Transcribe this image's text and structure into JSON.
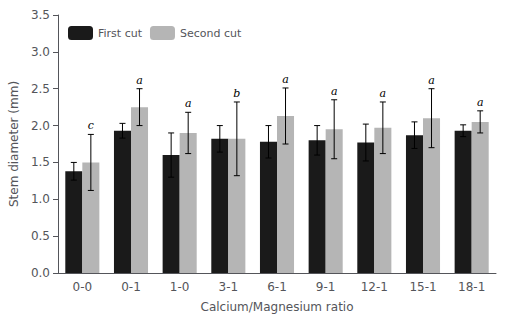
{
  "chart_data": {
    "type": "bar",
    "xlabel": "Calcium/Magnesium ratio",
    "ylabel": "Stem diameter (mm)",
    "categories": [
      "0-0",
      "0-1",
      "1-0",
      "3-1",
      "6-1",
      "9-1",
      "12-1",
      "15-1",
      "18-1"
    ],
    "series": [
      {
        "name": "First cut",
        "color": "#1a1a1a",
        "values": [
          1.38,
          1.93,
          1.6,
          1.82,
          1.78,
          1.8,
          1.77,
          1.87,
          1.93
        ],
        "errors": [
          0.12,
          0.1,
          0.3,
          0.18,
          0.22,
          0.2,
          0.25,
          0.18,
          0.08
        ]
      },
      {
        "name": "Second cut",
        "color": "#b5b5b5",
        "values": [
          1.5,
          2.25,
          1.9,
          1.82,
          2.13,
          1.95,
          1.97,
          2.1,
          2.05
        ],
        "errors": [
          0.38,
          0.25,
          0.28,
          0.5,
          0.38,
          0.4,
          0.35,
          0.4,
          0.15
        ],
        "annotations": [
          "c",
          "a",
          "a",
          "b",
          "a",
          "a",
          "a",
          "a",
          "a"
        ]
      }
    ],
    "ylim": [
      0.0,
      3.5
    ],
    "yticks": [
      {
        "value": 0.0,
        "label": "0.0"
      },
      0.5,
      {
        "value": 1.0,
        "label": "1.0"
      },
      1.5,
      {
        "value": 2.0,
        "label": "2.0"
      },
      2.5,
      {
        "value": 3.0,
        "label": "3.0"
      },
      3.5
    ],
    "legend": "upper left",
    "grid": false
  }
}
